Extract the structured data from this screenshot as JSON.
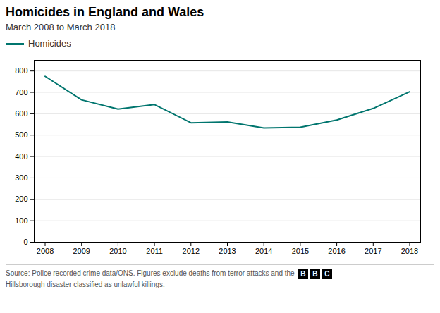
{
  "chart_data": {
    "type": "line",
    "title": "Homicides in England and Wales",
    "subtitle": "March 2008 to March 2018",
    "x": [
      2008,
      2009,
      2010,
      2011,
      2012,
      2013,
      2014,
      2015,
      2016,
      2017,
      2018
    ],
    "series": [
      {
        "name": "Homicides",
        "color": "#00756e",
        "values": [
          775,
          665,
          622,
          643,
          558,
          562,
          534,
          537,
          571,
          625,
          703
        ]
      }
    ],
    "xlim": [
      2007.7,
      2018.3
    ],
    "xticks": [
      2008,
      2009,
      2010,
      2011,
      2012,
      2013,
      2014,
      2015,
      2016,
      2017,
      2018
    ],
    "ylim": [
      0,
      850
    ],
    "yticks": [
      0,
      100,
      200,
      300,
      400,
      500,
      600,
      700,
      800
    ],
    "grid": true,
    "legend": "top",
    "source": [
      "Source: Police recorded crime data/ONS. Figures exclude deaths from terror attacks and the",
      "Hillsborough disaster classified as unlawful killings."
    ],
    "logo": [
      "B",
      "B",
      "C"
    ]
  }
}
